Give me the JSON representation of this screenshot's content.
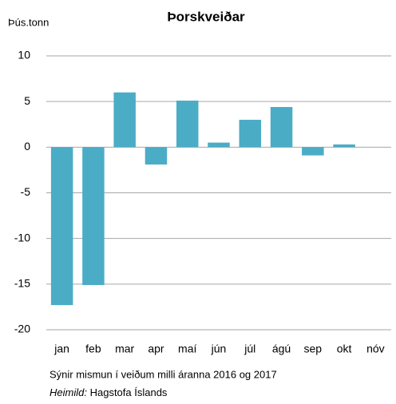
{
  "chart_data": {
    "type": "bar",
    "title": "Þorskveiðar",
    "y_label": "Þús.tonn",
    "categories": [
      "jan",
      "feb",
      "mar",
      "apr",
      "maí",
      "jún",
      "júl",
      "ágú",
      "sep",
      "okt",
      "nóv"
    ],
    "values": [
      -17.3,
      -15.1,
      6.0,
      -1.9,
      5.1,
      0.5,
      3.0,
      4.4,
      -0.9,
      0.3,
      null
    ],
    "color": "#4bacc6",
    "ylim": [
      -20,
      10
    ],
    "yticks": [
      -20,
      -15,
      -10,
      -5,
      0,
      5,
      10
    ],
    "grid": true,
    "note": "Sýnir mismun í veiðum milli áranna 2016 og 2017",
    "source_label": "Heimild:",
    "source": "Hagstofa Íslands"
  }
}
